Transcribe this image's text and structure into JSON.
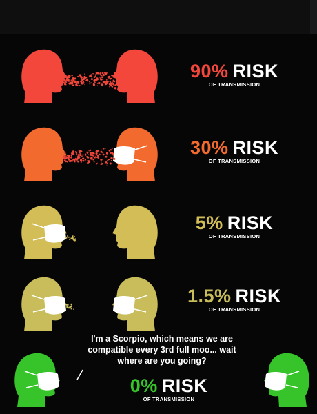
{
  "colors": {
    "background": "#060606",
    "risk90": "#f4473b",
    "risk30": "#f26a2d",
    "risk5": "#d2bd57",
    "risk1_5": "#c8bd5a",
    "risk0": "#37c42a",
    "mask": "#ffffff",
    "text": "#ffffff"
  },
  "rows": [
    {
      "percent": "90%",
      "word": "RISK",
      "subtitle": "OF TRANSMISSION",
      "left_mask": false,
      "right_mask": false,
      "droplets": "heavy"
    },
    {
      "percent": "30%",
      "word": "RISK",
      "subtitle": "OF TRANSMISSION",
      "left_mask": false,
      "right_mask": true,
      "droplets": "heavy"
    },
    {
      "percent": "5%",
      "word": "RISK",
      "subtitle": "OF TRANSMISSION",
      "left_mask": true,
      "right_mask": false,
      "droplets": "light"
    },
    {
      "percent": "1.5%",
      "word": "RISK",
      "subtitle": "OF TRANSMISSION",
      "left_mask": true,
      "right_mask": true,
      "droplets": "light"
    },
    {
      "percent": "0%",
      "word": "RISK",
      "subtitle": "OF TRANSMISSION",
      "left_mask": true,
      "right_mask": true,
      "droplets": "none"
    }
  ],
  "quote": "I'm a Scorpio, which means we are compatible every 3rd full moo... wait where are you going?"
}
